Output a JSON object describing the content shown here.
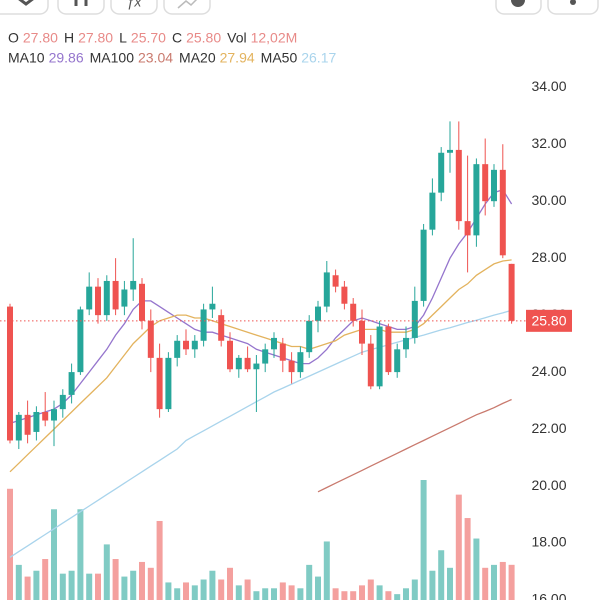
{
  "toolbar": {
    "fx": "ƒx"
  },
  "header": {
    "ohlc": [
      {
        "label": "O",
        "value": "27.80"
      },
      {
        "label": "H",
        "value": "27.80"
      },
      {
        "label": "L",
        "value": "25.70"
      },
      {
        "label": "C",
        "value": "25.80"
      },
      {
        "label": "Vol",
        "value": "12,02M"
      }
    ],
    "ma": [
      {
        "label": "MA10",
        "value": "29.86",
        "color": "#9575cd"
      },
      {
        "label": "MA100",
        "value": "23.04",
        "color": "#c97a6e"
      },
      {
        "label": "MA20",
        "value": "27.94",
        "color": "#e3b35e"
      },
      {
        "label": "MA50",
        "value": "26.17",
        "color": "#a9d4ec"
      }
    ]
  },
  "chart_data": {
    "type": "candlestick",
    "ylim": [
      16,
      34.5
    ],
    "yticks": [
      {
        "value": 16,
        "label": "16.00"
      },
      {
        "value": 18,
        "label": "18.00"
      },
      {
        "value": 20,
        "label": "20.00"
      },
      {
        "value": 22,
        "label": "22.00"
      },
      {
        "value": 24,
        "label": "24.00"
      },
      {
        "value": 26,
        "label": "26.00"
      },
      {
        "value": 28,
        "label": "28.00"
      },
      {
        "value": 30,
        "label": "30.00"
      },
      {
        "value": 32,
        "label": "32.00"
      },
      {
        "value": 34,
        "label": "34.00"
      }
    ],
    "up_color": "#26a69a",
    "down_color": "#ef5350",
    "up_volume_color": "#80cbc4",
    "down_volume_color": "#f4a09e",
    "open": [
      26.3,
      21.6,
      22.5,
      21.9,
      22.6,
      22.3,
      22.7,
      23.2,
      24.0,
      26.2,
      27.0,
      26.0,
      27.2,
      26.3,
      26.9,
      27.1,
      25.8,
      24.5,
      22.7,
      24.5,
      25.1,
      24.8,
      25.1,
      26.2,
      26.0,
      25.1,
      24.1,
      24.5,
      24.1,
      24.3,
      24.8,
      25.0,
      24.4,
      24.0,
      24.7,
      25.8,
      26.3,
      27.4,
      27.0,
      26.4,
      25.8,
      25.0,
      23.5,
      25.6,
      24.0,
      24.8,
      25.2,
      26.5,
      29.0,
      30.3,
      31.7,
      31.8,
      29.3,
      28.8,
      31.3,
      30.0,
      31.1,
      27.8
    ],
    "high": [
      26.4,
      22.6,
      23.0,
      22.8,
      23.3,
      23.0,
      23.4,
      24.3,
      26.3,
      27.5,
      27.3,
      27.4,
      28.0,
      27.2,
      28.7,
      27.3,
      26.2,
      25.0,
      24.7,
      25.3,
      25.5,
      25.3,
      26.4,
      27.0,
      26.2,
      25.4,
      24.6,
      24.9,
      24.6,
      25.0,
      25.4,
      25.2,
      24.7,
      24.9,
      26.0,
      26.5,
      27.9,
      27.6,
      27.2,
      26.6,
      26.2,
      25.3,
      25.8,
      25.7,
      25.0,
      25.6,
      27.0,
      29.2,
      30.8,
      31.9,
      32.8,
      32.8,
      31.6,
      31.5,
      32.2,
      31.3,
      32.0,
      27.8
    ],
    "low": [
      21.5,
      21.3,
      21.5,
      21.6,
      22.1,
      21.4,
      22.4,
      22.9,
      23.9,
      26.0,
      25.7,
      25.8,
      26.0,
      26.0,
      26.5,
      25.5,
      24.0,
      22.4,
      22.6,
      24.2,
      24.6,
      24.5,
      24.9,
      25.9,
      24.9,
      24.0,
      23.8,
      24.0,
      22.6,
      24.0,
      24.5,
      24.0,
      23.6,
      23.8,
      24.5,
      25.4,
      26.1,
      26.8,
      26.2,
      25.6,
      24.6,
      23.4,
      23.4,
      23.9,
      23.8,
      24.5,
      25.0,
      26.3,
      28.8,
      30.0,
      31.0,
      29.0,
      27.5,
      28.4,
      29.5,
      29.8,
      28.0,
      25.7
    ],
    "close": [
      21.6,
      22.5,
      21.8,
      22.6,
      22.3,
      22.7,
      23.2,
      24.0,
      26.2,
      27.0,
      26.0,
      27.2,
      26.2,
      26.9,
      27.2,
      25.8,
      24.5,
      22.7,
      24.5,
      25.1,
      24.8,
      25.1,
      26.2,
      26.4,
      25.1,
      24.1,
      24.5,
      24.1,
      24.3,
      24.8,
      25.2,
      24.4,
      24.0,
      24.7,
      25.8,
      26.3,
      27.5,
      27.0,
      26.4,
      25.8,
      25.0,
      23.5,
      25.6,
      24.0,
      24.8,
      25.2,
      26.5,
      29.0,
      30.3,
      31.7,
      31.8,
      29.3,
      28.8,
      31.3,
      30.0,
      31.1,
      28.1,
      25.8
    ],
    "volume": [
      38,
      12,
      8,
      10,
      14,
      31,
      9,
      10,
      31,
      9,
      9,
      19,
      14,
      8,
      10,
      13,
      11,
      27,
      6,
      4,
      6,
      5,
      7,
      10,
      7,
      11,
      5,
      7,
      3,
      4,
      4,
      6,
      5,
      4,
      12,
      8,
      20,
      4,
      3,
      3,
      5,
      7,
      5,
      3,
      2,
      4,
      7,
      41,
      10,
      17,
      11,
      36,
      28,
      21,
      11,
      12,
      13,
      12.02
    ],
    "series": [
      {
        "name": "MA10",
        "color": "#9575cd",
        "values": [
          22.2,
          22.3,
          22.4,
          22.5,
          22.6,
          22.7,
          22.9,
          23.2,
          23.6,
          24.0,
          24.4,
          24.8,
          25.3,
          25.7,
          26.2,
          26.5,
          26.5,
          26.3,
          26.1,
          25.9,
          25.7,
          25.5,
          25.4,
          25.4,
          25.3,
          25.2,
          25.1,
          25.0,
          24.8,
          24.7,
          24.6,
          24.5,
          24.4,
          24.3,
          24.3,
          24.5,
          24.8,
          25.2,
          25.5,
          25.8,
          25.9,
          25.8,
          25.7,
          25.6,
          25.5,
          25.5,
          25.6,
          26.0,
          26.6,
          27.3,
          28.0,
          28.5,
          28.9,
          29.4,
          29.9,
          30.3,
          30.4,
          29.9
        ]
      },
      {
        "name": "MA100",
        "color": "#c97a6e",
        "values": [
          null,
          null,
          null,
          null,
          null,
          null,
          null,
          null,
          null,
          null,
          null,
          null,
          null,
          null,
          null,
          null,
          null,
          null,
          null,
          null,
          null,
          null,
          null,
          null,
          null,
          null,
          null,
          null,
          null,
          null,
          null,
          null,
          null,
          null,
          null,
          19.8,
          19.95,
          20.1,
          20.25,
          20.4,
          20.55,
          20.7,
          20.85,
          21.0,
          21.15,
          21.3,
          21.45,
          21.6,
          21.75,
          21.9,
          22.05,
          22.2,
          22.35,
          22.5,
          22.62,
          22.75,
          22.9,
          23.04
        ]
      },
      {
        "name": "MA20",
        "color": "#e3b35e",
        "values": [
          20.5,
          20.8,
          21.1,
          21.4,
          21.7,
          22.0,
          22.3,
          22.6,
          22.9,
          23.2,
          23.5,
          23.8,
          24.2,
          24.6,
          25.0,
          25.3,
          25.6,
          25.8,
          25.9,
          26.0,
          26.0,
          25.9,
          25.9,
          25.8,
          25.7,
          25.6,
          25.5,
          25.4,
          25.3,
          25.2,
          25.1,
          25.0,
          24.9,
          24.9,
          24.8,
          24.9,
          25.0,
          25.1,
          25.3,
          25.4,
          25.5,
          25.5,
          25.5,
          25.4,
          25.4,
          25.4,
          25.5,
          25.7,
          26.0,
          26.3,
          26.6,
          26.9,
          27.1,
          27.4,
          27.6,
          27.8,
          27.9,
          27.94
        ]
      },
      {
        "name": "MA50",
        "color": "#a9d4ec",
        "values": [
          17.5,
          17.7,
          17.9,
          18.1,
          18.3,
          18.5,
          18.7,
          18.9,
          19.1,
          19.3,
          19.5,
          19.7,
          19.9,
          20.1,
          20.3,
          20.5,
          20.7,
          20.9,
          21.1,
          21.3,
          21.6,
          21.77,
          21.94,
          22.11,
          22.28,
          22.45,
          22.62,
          22.79,
          22.96,
          23.13,
          23.3,
          23.44,
          23.58,
          23.72,
          23.86,
          24.0,
          24.14,
          24.28,
          24.42,
          24.56,
          24.7,
          24.79,
          24.87,
          24.96,
          25.05,
          25.13,
          25.22,
          25.3,
          25.39,
          25.48,
          25.56,
          25.65,
          25.74,
          25.82,
          25.91,
          26.0,
          26.08,
          26.17
        ]
      }
    ],
    "last_price": {
      "value": 25.8,
      "label": "25.80"
    }
  }
}
